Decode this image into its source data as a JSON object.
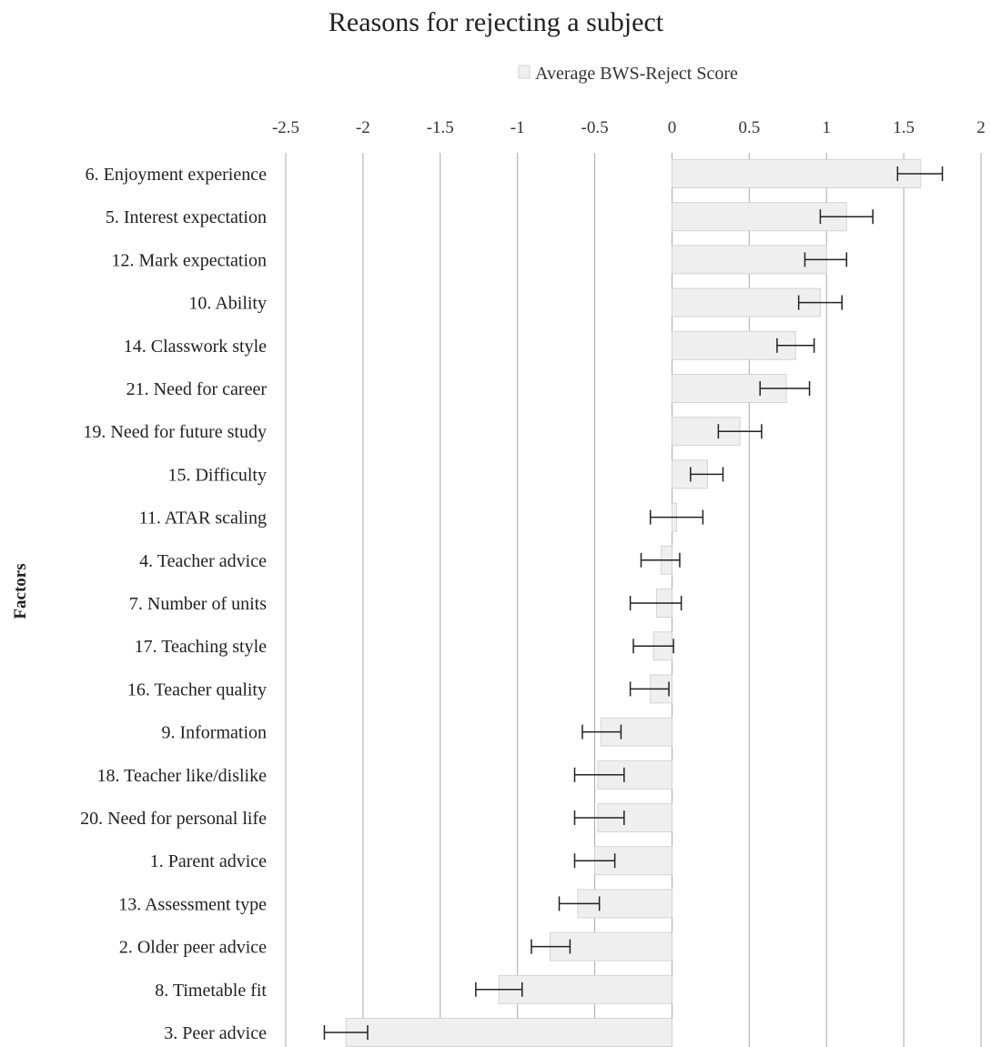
{
  "chart_data": {
    "type": "bar",
    "orientation": "horizontal",
    "title": "Reasons for rejecting a subject",
    "ylabel": "Factors",
    "xlabel": "",
    "xlim": [
      -2.5,
      2
    ],
    "xticks": [
      "-2.5",
      "-2",
      "-1.5",
      "-1",
      "-0.5",
      "0",
      "0.5",
      "1",
      "1.5",
      "2"
    ],
    "grid": "vertical",
    "legend_position": "top",
    "colors": {
      "bar_fill": "#efefef",
      "bar_stroke": "#d4d4d4",
      "grid": "#a9a9a9",
      "error_bar": "#222222"
    },
    "series": [
      {
        "name": "Average BWS-Reject Score",
        "categories": [
          "6. Enjoyment experience",
          "5. Interest expectation",
          "12. Mark expectation",
          "10. Ability",
          "14. Classwork style",
          "21. Need for career",
          "19. Need for future study",
          "15. Difficulty",
          "11. ATAR scaling",
          "4. Teacher advice",
          "7. Number of units",
          "17. Teaching style",
          "16. Teacher quality",
          "9. Information",
          "18. Teacher like/dislike",
          "20. Need for personal life",
          "1. Parent advice",
          "13. Assessment type",
          "2. Older peer advice",
          "8. Timetable fit",
          "3. Peer advice"
        ],
        "values": [
          1.61,
          1.13,
          1.0,
          0.96,
          0.8,
          0.74,
          0.44,
          0.23,
          0.03,
          -0.07,
          -0.1,
          -0.12,
          -0.14,
          -0.46,
          -0.48,
          -0.48,
          -0.5,
          -0.61,
          -0.79,
          -1.12,
          -2.11
        ],
        "error_low": [
          1.46,
          0.96,
          0.86,
          0.82,
          0.68,
          0.57,
          0.3,
          0.12,
          -0.14,
          -0.2,
          -0.27,
          -0.25,
          -0.27,
          -0.58,
          -0.63,
          -0.63,
          -0.63,
          -0.73,
          -0.91,
          -1.27,
          -2.25
        ],
        "error_high": [
          1.75,
          1.3,
          1.13,
          1.1,
          0.92,
          0.89,
          0.58,
          0.33,
          0.2,
          0.05,
          0.06,
          0.01,
          -0.02,
          -0.33,
          -0.31,
          -0.31,
          -0.37,
          -0.47,
          -0.66,
          -0.97,
          -1.97
        ]
      }
    ]
  }
}
